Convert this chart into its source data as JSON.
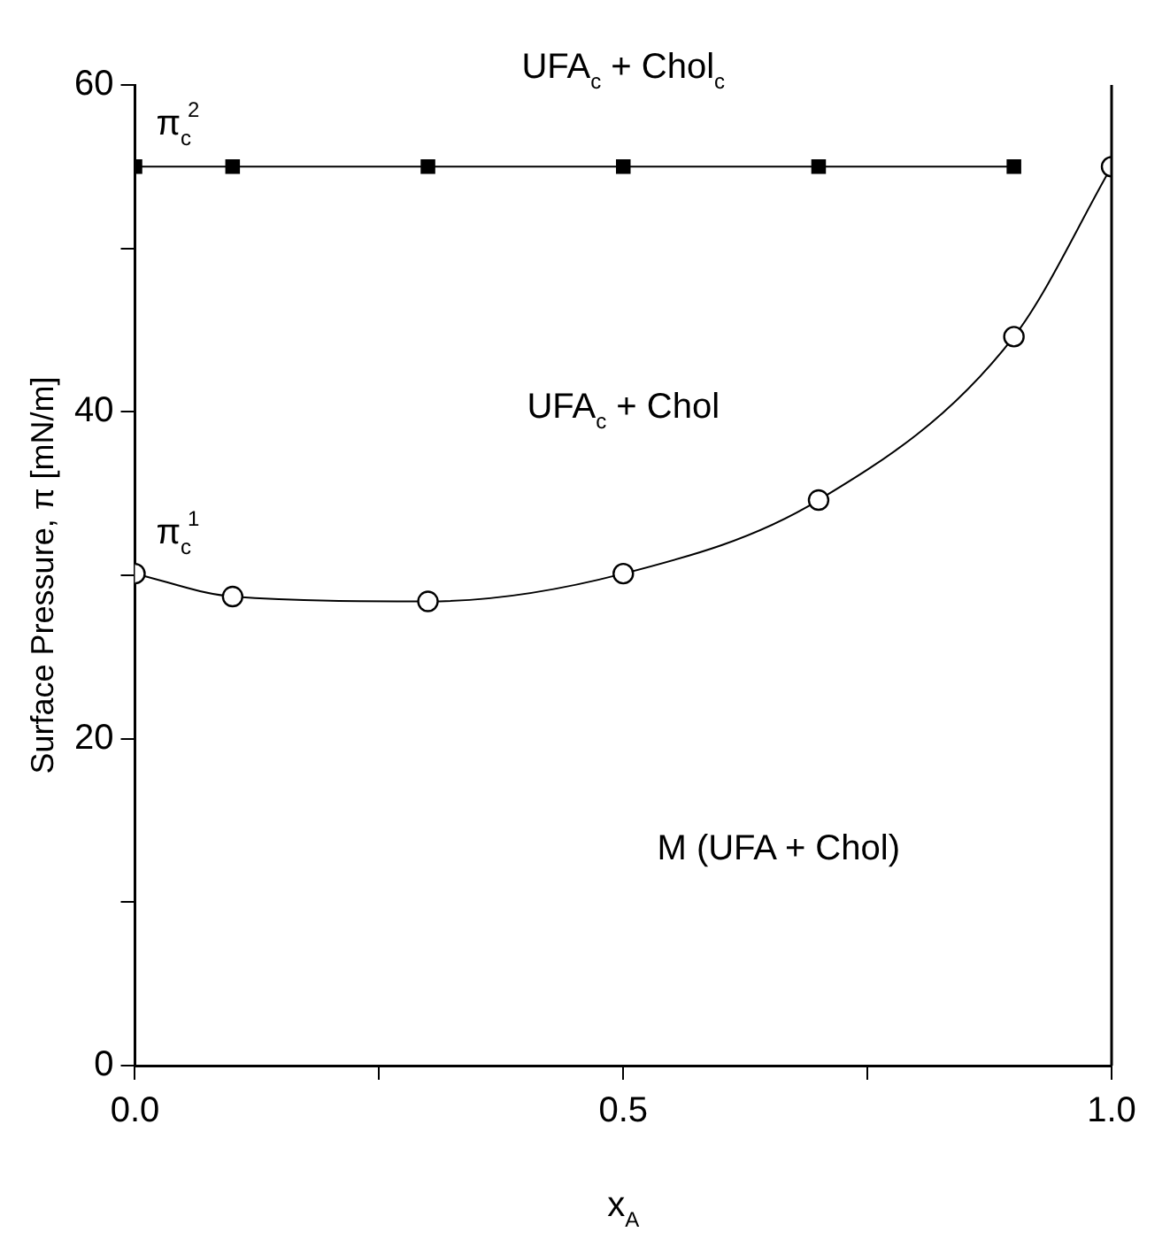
{
  "chart_data": {
    "type": "line",
    "xlabel": "x$_{A}$",
    "ylabel": "Surface Pressure, π [mN/m]",
    "annotations": [
      "UFA$_{c}$ + Chol$_{c}$",
      "UFA$_{c}$ + Chol",
      "M (UFA + Chol)"
    ],
    "series": [
      {
        "name": "π$_{c}$$^{2}$",
        "color": "#000000",
        "marker": "square",
        "x": [
          0,
          0.1,
          0.3,
          0.5,
          0.7,
          0.9
        ],
        "values": [
          55,
          55,
          55,
          55,
          55,
          55
        ]
      },
      {
        "name": "π$_{c}$$^{1}$",
        "color": "#000000",
        "marker": "circle",
        "x": [
          0,
          0.1,
          0.3,
          0.5,
          0.7,
          0.9,
          1
        ],
        "values": [
          30.1,
          28.7,
          28.4,
          30.1,
          34.6,
          44.6,
          55
        ]
      }
    ],
    "xlim": [
      0,
      1
    ],
    "xticks": [
      {
        "value": 0,
        "label": "0.0"
      },
      {
        "value": 0.25,
        "label": null
      },
      0.5,
      {
        "value": 0.75,
        "label": null
      },
      {
        "value": 1,
        "label": "1.0"
      }
    ],
    "ylim": [
      0,
      60
    ],
    "yticks": [
      0,
      {
        "value": 10,
        "label": null
      },
      20,
      {
        "value": 30,
        "label": null
      },
      40,
      {
        "value": 50,
        "label": null
      },
      60
    ],
    "grid": false
  }
}
